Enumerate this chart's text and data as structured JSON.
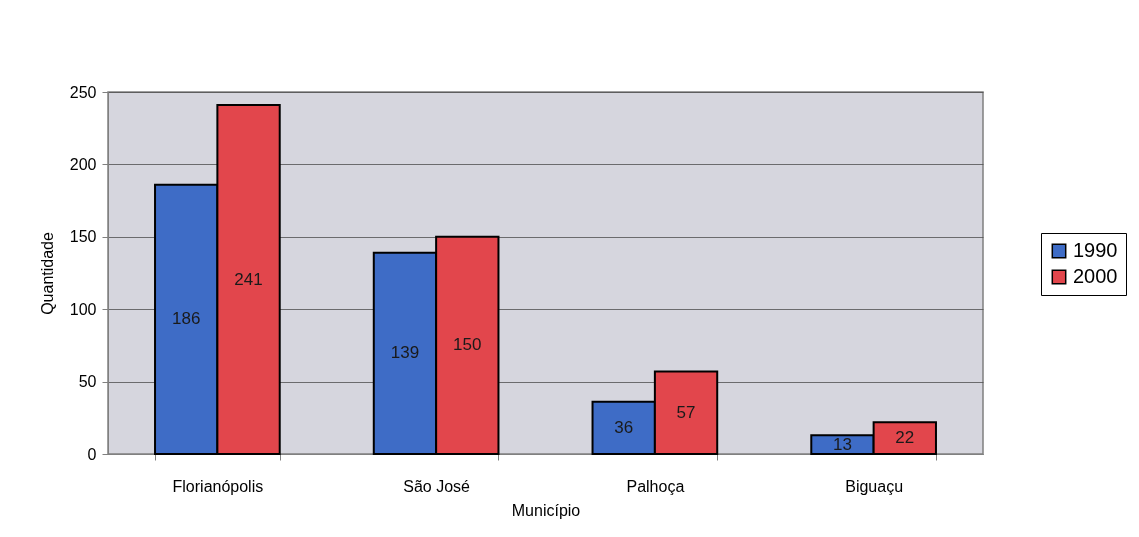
{
  "chart_data": {
    "type": "bar",
    "xlabel": "Município",
    "ylabel": "Quantidade",
    "categories": [
      "Florianópolis",
      "São José",
      "Palhoça",
      "Biguaçu"
    ],
    "series": [
      {
        "name": "1990",
        "color": "#3e6cc6",
        "values": [
          186,
          139,
          36,
          13
        ]
      },
      {
        "name": "2000",
        "color": "#e2464c",
        "values": [
          241,
          150,
          57,
          22
        ]
      }
    ],
    "ylim": [
      0,
      250
    ],
    "yticks": [
      0,
      50,
      100,
      150,
      200,
      250
    ],
    "grid": "y",
    "legend": "right",
    "data_labels": true
  }
}
